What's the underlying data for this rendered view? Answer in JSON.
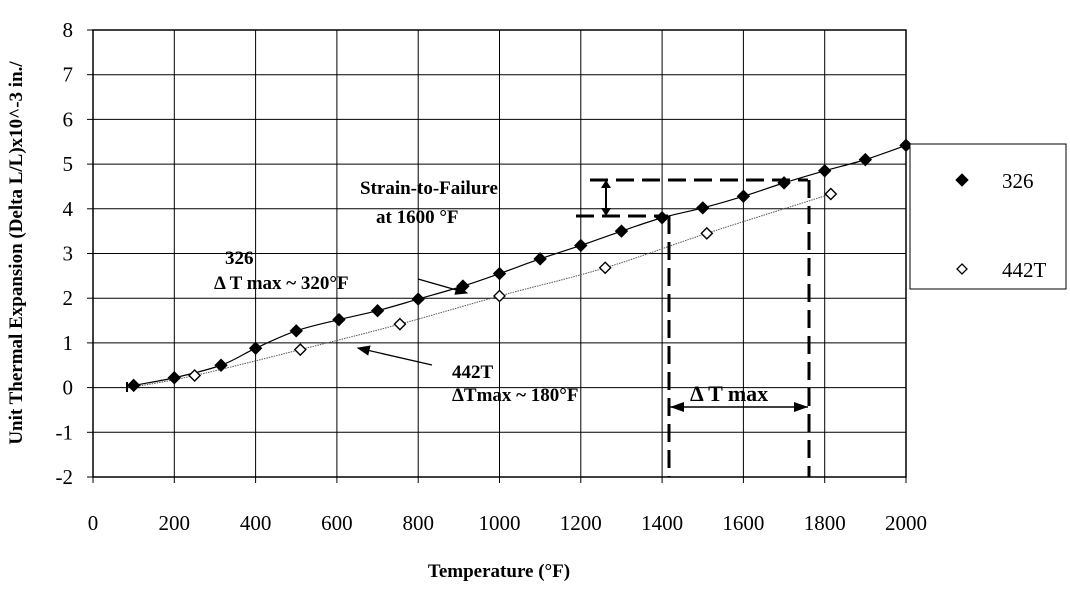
{
  "chart_data": {
    "type": "scatter",
    "xlabel": "Temperature (°F)",
    "ylabel": "Unit Thermal Expansion (Delta L/L)x10^-3 in./",
    "xlim": [
      0,
      2000
    ],
    "ylim": [
      -2,
      8
    ],
    "x_ticks": [
      "0",
      "200",
      "400",
      "600",
      "800",
      "1000",
      "1200",
      "1400",
      "1600",
      "1800",
      "2000"
    ],
    "y_ticks": [
      "8",
      "7",
      "6",
      "5",
      "4",
      "3",
      "2",
      "1",
      "0",
      "-1",
      "-2"
    ],
    "grid": true,
    "legend_position": "right",
    "series": [
      {
        "name": "326",
        "marker": "filled-diamond",
        "color": "#000000",
        "points": [
          {
            "x": 100,
            "y": 0.05
          },
          {
            "x": 200,
            "y": 0.22
          },
          {
            "x": 315,
            "y": 0.5
          },
          {
            "x": 400,
            "y": 0.88
          },
          {
            "x": 500,
            "y": 1.27
          },
          {
            "x": 605,
            "y": 1.52
          },
          {
            "x": 700,
            "y": 1.72
          },
          {
            "x": 800,
            "y": 1.98
          },
          {
            "x": 910,
            "y": 2.27
          },
          {
            "x": 1000,
            "y": 2.55
          },
          {
            "x": 1100,
            "y": 2.88
          },
          {
            "x": 1200,
            "y": 3.18
          },
          {
            "x": 1300,
            "y": 3.5
          },
          {
            "x": 1400,
            "y": 3.8
          },
          {
            "x": 1500,
            "y": 4.02
          },
          {
            "x": 1600,
            "y": 4.28
          },
          {
            "x": 1700,
            "y": 4.58
          },
          {
            "x": 1800,
            "y": 4.85
          },
          {
            "x": 1900,
            "y": 5.1
          },
          {
            "x": 2000,
            "y": 5.42
          }
        ]
      },
      {
        "name": "442T",
        "marker": "open-diamond",
        "color": "#000000",
        "points": [
          {
            "x": 250,
            "y": 0.27
          },
          {
            "x": 510,
            "y": 0.85
          },
          {
            "x": 755,
            "y": 1.42
          },
          {
            "x": 1000,
            "y": 2.05
          },
          {
            "x": 1260,
            "y": 2.68
          },
          {
            "x": 1510,
            "y": 3.45
          },
          {
            "x": 1815,
            "y": 4.33
          }
        ]
      }
    ],
    "annotations": {
      "strain_line1": "Strain-to-Failure",
      "strain_line2": "at 1600 °F",
      "label_326": "326",
      "dtmax_326": "Δ T max ~ 320°F",
      "label_442t": "442T",
      "dtmax_442t": "ΔTmax ~ 180°F",
      "dtmax": "Δ T max"
    }
  }
}
